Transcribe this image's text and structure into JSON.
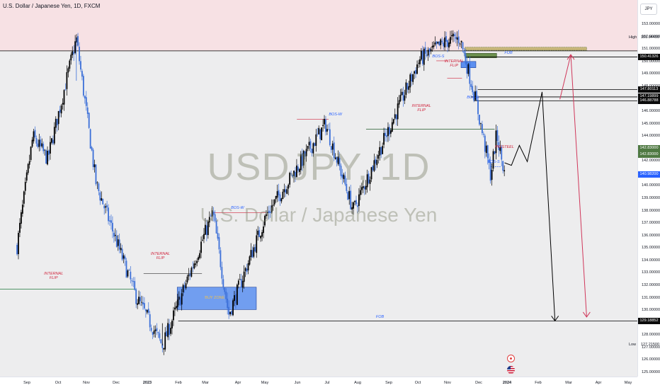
{
  "header": {
    "title": "U.S. Dollar / Japanese Yen, 1D, FXCM",
    "currency": "JPY"
  },
  "watermark": {
    "symbol_line": "USDJPY, 1D",
    "name_line": "U.S. Dollar / Japanese Yen"
  },
  "colors": {
    "up_candle": "#000000",
    "down_candle": "#3b6fd8",
    "supply_zone": "#f7e1e4",
    "demand_zone": "#5b8ff0",
    "bearish_label": "#d0243c",
    "bullish_label": "#2962ff",
    "projection_black": "#000000",
    "projection_red": "#d0375a"
  },
  "chart_data": {
    "type": "candlestick",
    "symbol": "USDJPY",
    "interval": "1D",
    "source": "FXCM",
    "ylim": [
      124.6,
      153.6
    ],
    "price_ticks": [
      "153.00000",
      "152.00000",
      "151.00000",
      "150.00000",
      "149.00000",
      "148.00000",
      "147.00000",
      "146.00000",
      "145.00000",
      "144.00000",
      "143.00000",
      "142.00000",
      "141.00000",
      "140.00000",
      "139.00000",
      "138.00000",
      "137.00000",
      "136.00000",
      "135.00000",
      "134.00000",
      "133.00000",
      "132.00000",
      "131.00000",
      "130.00000",
      "129.00000",
      "128.00000",
      "127.00000",
      "126.00000",
      "125.00000"
    ],
    "time_ticks": [
      "Sep",
      "Oct",
      "Nov",
      "Dec",
      "2023",
      "Feb",
      "Mar",
      "Apr",
      "May",
      "Jun",
      "Jul",
      "Aug",
      "Sep",
      "Oct",
      "Nov",
      "Dec",
      "2024",
      "Feb",
      "Mar",
      "Apr",
      "May"
    ],
    "high": {
      "label": "High",
      "value": "151.94400"
    },
    "low": {
      "label": "Low",
      "value": "127.21500"
    },
    "price_tags": [
      {
        "value": "150.41326",
        "style": "black"
      },
      {
        "value": "147.80113",
        "style": "black"
      },
      {
        "value": "147.19899",
        "style": "black"
      },
      {
        "value": "146.88788",
        "style": "black"
      },
      {
        "value": "142.83000",
        "style": "green"
      },
      {
        "value": "142.83000",
        "style": "green"
      },
      {
        "value": "140.98200",
        "style": "blue"
      },
      {
        "value": "129.18852",
        "style": "black"
      }
    ],
    "price_path": [
      {
        "x": "2022-08-22",
        "y": 135.2
      },
      {
        "x": "2022-09-07",
        "y": 144.0
      },
      {
        "x": "2022-09-22",
        "y": 142.2
      },
      {
        "x": "2022-10-21",
        "y": 151.9
      },
      {
        "x": "2022-11-10",
        "y": 140.2
      },
      {
        "x": "2022-12-20",
        "y": 131.2
      },
      {
        "x": "2023-01-16",
        "y": 127.2
      },
      {
        "x": "2023-03-08",
        "y": 137.9
      },
      {
        "x": "2023-03-24",
        "y": 129.7
      },
      {
        "x": "2023-05-01",
        "y": 137.7
      },
      {
        "x": "2023-06-30",
        "y": 145.0
      },
      {
        "x": "2023-07-28",
        "y": 138.1
      },
      {
        "x": "2023-10-03",
        "y": 150.2
      },
      {
        "x": "2023-10-31",
        "y": 151.7
      },
      {
        "x": "2023-11-13",
        "y": 151.9
      },
      {
        "x": "2023-11-29",
        "y": 146.9
      },
      {
        "x": "2023-12-14",
        "y": 140.9
      },
      {
        "x": "2023-12-20",
        "y": 144.2
      },
      {
        "x": "2023-12-28",
        "y": 140.98
      }
    ],
    "horizontal_levels": [
      {
        "price": 150.41326,
        "label": "FOB"
      },
      {
        "price": 147.80113
      },
      {
        "price": 147.19899
      },
      {
        "price": 146.88788
      },
      {
        "price": 129.18852,
        "label": "FOB"
      }
    ],
    "zones": [
      {
        "name": "supply",
        "from": 150.9,
        "to": 153.6
      },
      {
        "name": "demand",
        "from": 130.1,
        "to": 131.9,
        "label": "BUY ZONE"
      }
    ],
    "annotations": [
      {
        "text": "INTERNAL FLIP",
        "price": 131.7,
        "color": "bearish_label"
      },
      {
        "text": "INTERNAL FLIP",
        "price": 133.1,
        "color": "bearish_label"
      },
      {
        "text": "BOS-W",
        "price": 137.9,
        "color": "bullish_label"
      },
      {
        "text": "BOS-W",
        "price": 145.4,
        "color": "bullish_label"
      },
      {
        "text": "INTERNAL FLIP",
        "price": 145.0,
        "color": "bearish_label"
      },
      {
        "text": "BOS-S",
        "price": 150.2,
        "color": "bullish_label"
      },
      {
        "text": "INTERNAL FLIP",
        "price": 148.8,
        "color": "bearish_label"
      },
      {
        "text": "BOS-S",
        "price": 146.9,
        "color": "bullish_label"
      },
      {
        "text": "BOS-S",
        "price": 141.7,
        "color": "bullish_label"
      },
      {
        "text": "FOB",
        "price": 150.41,
        "color": "bullish_label"
      },
      {
        "text": "FOB",
        "price": 129.19,
        "color": "bullish_label"
      },
      {
        "text": "PIGSTEEL",
        "price": 142.9,
        "color": "bearish_label"
      }
    ],
    "projections": [
      {
        "name": "black path",
        "points": [
          {
            "x": "2023-12-28",
            "y": 141.9
          },
          {
            "x": "2024-01-04",
            "y": 141.7
          },
          {
            "x": "2024-01-12",
            "y": 143.3
          },
          {
            "x": "2024-01-20",
            "y": 142.0
          },
          {
            "x": "2024-02-04",
            "y": 147.6
          },
          {
            "x": "2024-02-17",
            "y": 129.19
          }
        ]
      },
      {
        "name": "red path",
        "points": [
          {
            "x": "2024-02-22",
            "y": 147.0
          },
          {
            "x": "2024-03-04",
            "y": 150.6
          },
          {
            "x": "2024-03-20",
            "y": 129.5
          }
        ]
      }
    ]
  }
}
